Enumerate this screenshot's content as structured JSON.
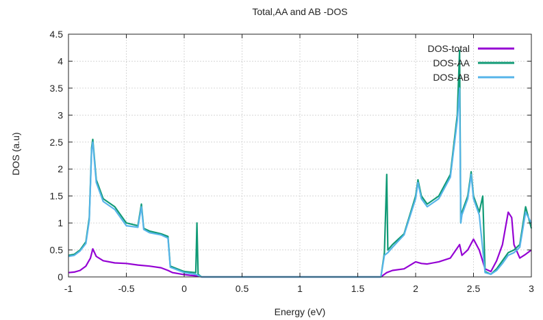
{
  "chart_data": {
    "type": "line",
    "title": "Total,AA and AB -DOS",
    "xlabel": "Energy (eV)",
    "ylabel": "DOS (a.u)",
    "xlim": [
      -1,
      3
    ],
    "ylim": [
      0,
      4.5
    ],
    "x_ticks": [
      "-1",
      "-0.5",
      "0",
      "0.5",
      "1",
      "1.5",
      "2",
      "2.5",
      "3"
    ],
    "y_ticks": [
      "0",
      "0.5",
      "1",
      "1.5",
      "2",
      "2.5",
      "3",
      "3.5",
      "4",
      "4.5"
    ],
    "grid": true,
    "legend_position": "top-right",
    "series": [
      {
        "name": "DOS-total",
        "color": "#9400d3",
        "points": [
          [
            -1.0,
            0.08
          ],
          [
            -0.95,
            0.09
          ],
          [
            -0.9,
            0.12
          ],
          [
            -0.85,
            0.2
          ],
          [
            -0.81,
            0.35
          ],
          [
            -0.79,
            0.52
          ],
          [
            -0.76,
            0.38
          ],
          [
            -0.7,
            0.3
          ],
          [
            -0.6,
            0.26
          ],
          [
            -0.5,
            0.25
          ],
          [
            -0.4,
            0.22
          ],
          [
            -0.3,
            0.2
          ],
          [
            -0.2,
            0.17
          ],
          [
            -0.14,
            0.12
          ],
          [
            -0.1,
            0.08
          ],
          [
            -0.02,
            0.05
          ],
          [
            0.05,
            0.03
          ],
          [
            0.1,
            0.02
          ],
          [
            0.12,
            0.02
          ],
          [
            0.15,
            0.0
          ],
          [
            1.7,
            0.0
          ],
          [
            1.73,
            0.05
          ],
          [
            1.75,
            0.08
          ],
          [
            1.8,
            0.12
          ],
          [
            1.9,
            0.15
          ],
          [
            2.0,
            0.28
          ],
          [
            2.05,
            0.25
          ],
          [
            2.1,
            0.24
          ],
          [
            2.2,
            0.28
          ],
          [
            2.3,
            0.35
          ],
          [
            2.38,
            0.6
          ],
          [
            2.4,
            0.4
          ],
          [
            2.45,
            0.5
          ],
          [
            2.5,
            0.7
          ],
          [
            2.55,
            0.5
          ],
          [
            2.6,
            0.15
          ],
          [
            2.65,
            0.1
          ],
          [
            2.7,
            0.3
          ],
          [
            2.75,
            0.6
          ],
          [
            2.8,
            1.2
          ],
          [
            2.83,
            1.1
          ],
          [
            2.85,
            0.6
          ],
          [
            2.9,
            0.35
          ],
          [
            2.95,
            0.42
          ],
          [
            3.0,
            0.5
          ]
        ]
      },
      {
        "name": "DOS-AA",
        "color": "#109a75",
        "points": [
          [
            -1.0,
            0.4
          ],
          [
            -0.95,
            0.42
          ],
          [
            -0.9,
            0.5
          ],
          [
            -0.85,
            0.65
          ],
          [
            -0.82,
            1.1
          ],
          [
            -0.8,
            2.4
          ],
          [
            -0.79,
            2.55
          ],
          [
            -0.76,
            1.8
          ],
          [
            -0.7,
            1.45
          ],
          [
            -0.6,
            1.3
          ],
          [
            -0.5,
            1.0
          ],
          [
            -0.4,
            0.95
          ],
          [
            -0.37,
            1.35
          ],
          [
            -0.35,
            0.9
          ],
          [
            -0.3,
            0.85
          ],
          [
            -0.2,
            0.8
          ],
          [
            -0.14,
            0.75
          ],
          [
            -0.12,
            0.2
          ],
          [
            0.0,
            0.1
          ],
          [
            0.1,
            0.08
          ],
          [
            0.11,
            1.0
          ],
          [
            0.12,
            0.05
          ],
          [
            0.15,
            0.0
          ],
          [
            1.7,
            0.0
          ],
          [
            1.73,
            0.45
          ],
          [
            1.75,
            1.9
          ],
          [
            1.76,
            0.5
          ],
          [
            1.8,
            0.6
          ],
          [
            1.9,
            0.8
          ],
          [
            2.0,
            1.5
          ],
          [
            2.02,
            1.8
          ],
          [
            2.05,
            1.5
          ],
          [
            2.1,
            1.35
          ],
          [
            2.2,
            1.5
          ],
          [
            2.3,
            1.9
          ],
          [
            2.36,
            3.0
          ],
          [
            2.38,
            4.2
          ],
          [
            2.39,
            1.0
          ],
          [
            2.4,
            1.2
          ],
          [
            2.45,
            1.5
          ],
          [
            2.48,
            1.95
          ],
          [
            2.5,
            1.5
          ],
          [
            2.55,
            1.2
          ],
          [
            2.58,
            1.5
          ],
          [
            2.6,
            0.1
          ],
          [
            2.65,
            0.05
          ],
          [
            2.7,
            0.15
          ],
          [
            2.75,
            0.3
          ],
          [
            2.8,
            0.45
          ],
          [
            2.85,
            0.5
          ],
          [
            2.9,
            0.6
          ],
          [
            2.95,
            1.3
          ],
          [
            3.0,
            0.9
          ]
        ]
      },
      {
        "name": "DOS-AB",
        "color": "#56b4e9",
        "points": [
          [
            -1.0,
            0.38
          ],
          [
            -0.95,
            0.4
          ],
          [
            -0.9,
            0.48
          ],
          [
            -0.85,
            0.62
          ],
          [
            -0.82,
            1.05
          ],
          [
            -0.8,
            2.35
          ],
          [
            -0.79,
            2.5
          ],
          [
            -0.76,
            1.75
          ],
          [
            -0.7,
            1.4
          ],
          [
            -0.6,
            1.25
          ],
          [
            -0.5,
            0.95
          ],
          [
            -0.4,
            0.92
          ],
          [
            -0.37,
            1.3
          ],
          [
            -0.35,
            0.88
          ],
          [
            -0.3,
            0.82
          ],
          [
            -0.2,
            0.78
          ],
          [
            -0.14,
            0.72
          ],
          [
            -0.12,
            0.18
          ],
          [
            0.0,
            0.08
          ],
          [
            0.1,
            0.05
          ],
          [
            0.15,
            0.0
          ],
          [
            1.7,
            0.0
          ],
          [
            1.73,
            0.4
          ],
          [
            1.76,
            0.45
          ],
          [
            1.8,
            0.55
          ],
          [
            1.9,
            0.78
          ],
          [
            2.0,
            1.45
          ],
          [
            2.02,
            1.75
          ],
          [
            2.05,
            1.45
          ],
          [
            2.1,
            1.3
          ],
          [
            2.2,
            1.45
          ],
          [
            2.3,
            1.85
          ],
          [
            2.36,
            2.9
          ],
          [
            2.38,
            3.5
          ],
          [
            2.39,
            1.0
          ],
          [
            2.4,
            1.15
          ],
          [
            2.45,
            1.45
          ],
          [
            2.48,
            1.9
          ],
          [
            2.5,
            1.45
          ],
          [
            2.55,
            1.15
          ],
          [
            2.6,
            0.08
          ],
          [
            2.65,
            0.05
          ],
          [
            2.7,
            0.12
          ],
          [
            2.75,
            0.25
          ],
          [
            2.8,
            0.4
          ],
          [
            2.85,
            0.45
          ],
          [
            2.9,
            0.55
          ],
          [
            2.95,
            1.2
          ],
          [
            3.0,
            1.0
          ]
        ]
      }
    ]
  }
}
